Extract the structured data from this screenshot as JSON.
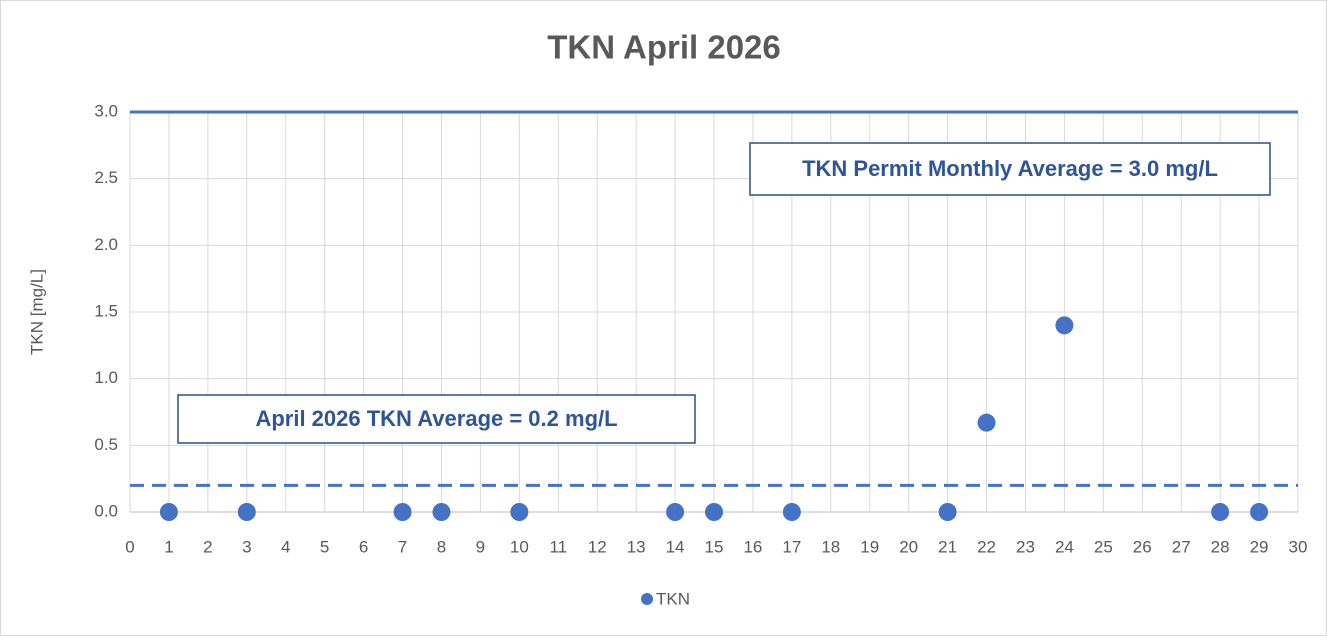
{
  "chart_data": {
    "type": "scatter",
    "title": "TKN April 2026",
    "y_label": "TKN [mg/L]",
    "series": [
      {
        "name": "TKN",
        "color": "#4472c4",
        "x": [
          1,
          3,
          7,
          8,
          10,
          14,
          15,
          17,
          21,
          22,
          24,
          28,
          29
        ],
        "values": [
          0,
          0,
          0,
          0,
          0,
          0,
          0,
          0,
          0,
          0.67,
          1.4,
          0,
          0
        ]
      }
    ],
    "xlim": [
      0,
      30
    ],
    "xticks": [
      0,
      1,
      2,
      3,
      4,
      5,
      6,
      7,
      8,
      9,
      10,
      11,
      12,
      13,
      14,
      15,
      16,
      17,
      18,
      19,
      20,
      21,
      22,
      23,
      24,
      25,
      26,
      27,
      28,
      29,
      30
    ],
    "ylim": [
      0,
      3
    ],
    "yticks": [
      {
        "value": 0,
        "label": "0.0"
      },
      0.5,
      {
        "value": 1,
        "label": "1.0"
      },
      1.5,
      {
        "value": 2,
        "label": "2.0"
      },
      2.5,
      {
        "value": 3,
        "label": "3.0"
      }
    ],
    "grid": true,
    "legend": "bottom",
    "reference_lines": [
      {
        "value": 3.0,
        "style": "solid",
        "color": "#4472c4"
      },
      {
        "value": 0.2,
        "style": "dashed",
        "color": "#4472c4"
      }
    ],
    "annotations": [
      "TKN Permit Monthly Average = 3.0 mg/L",
      "April 2026 TKN Average = 0.2 mg/L"
    ]
  }
}
